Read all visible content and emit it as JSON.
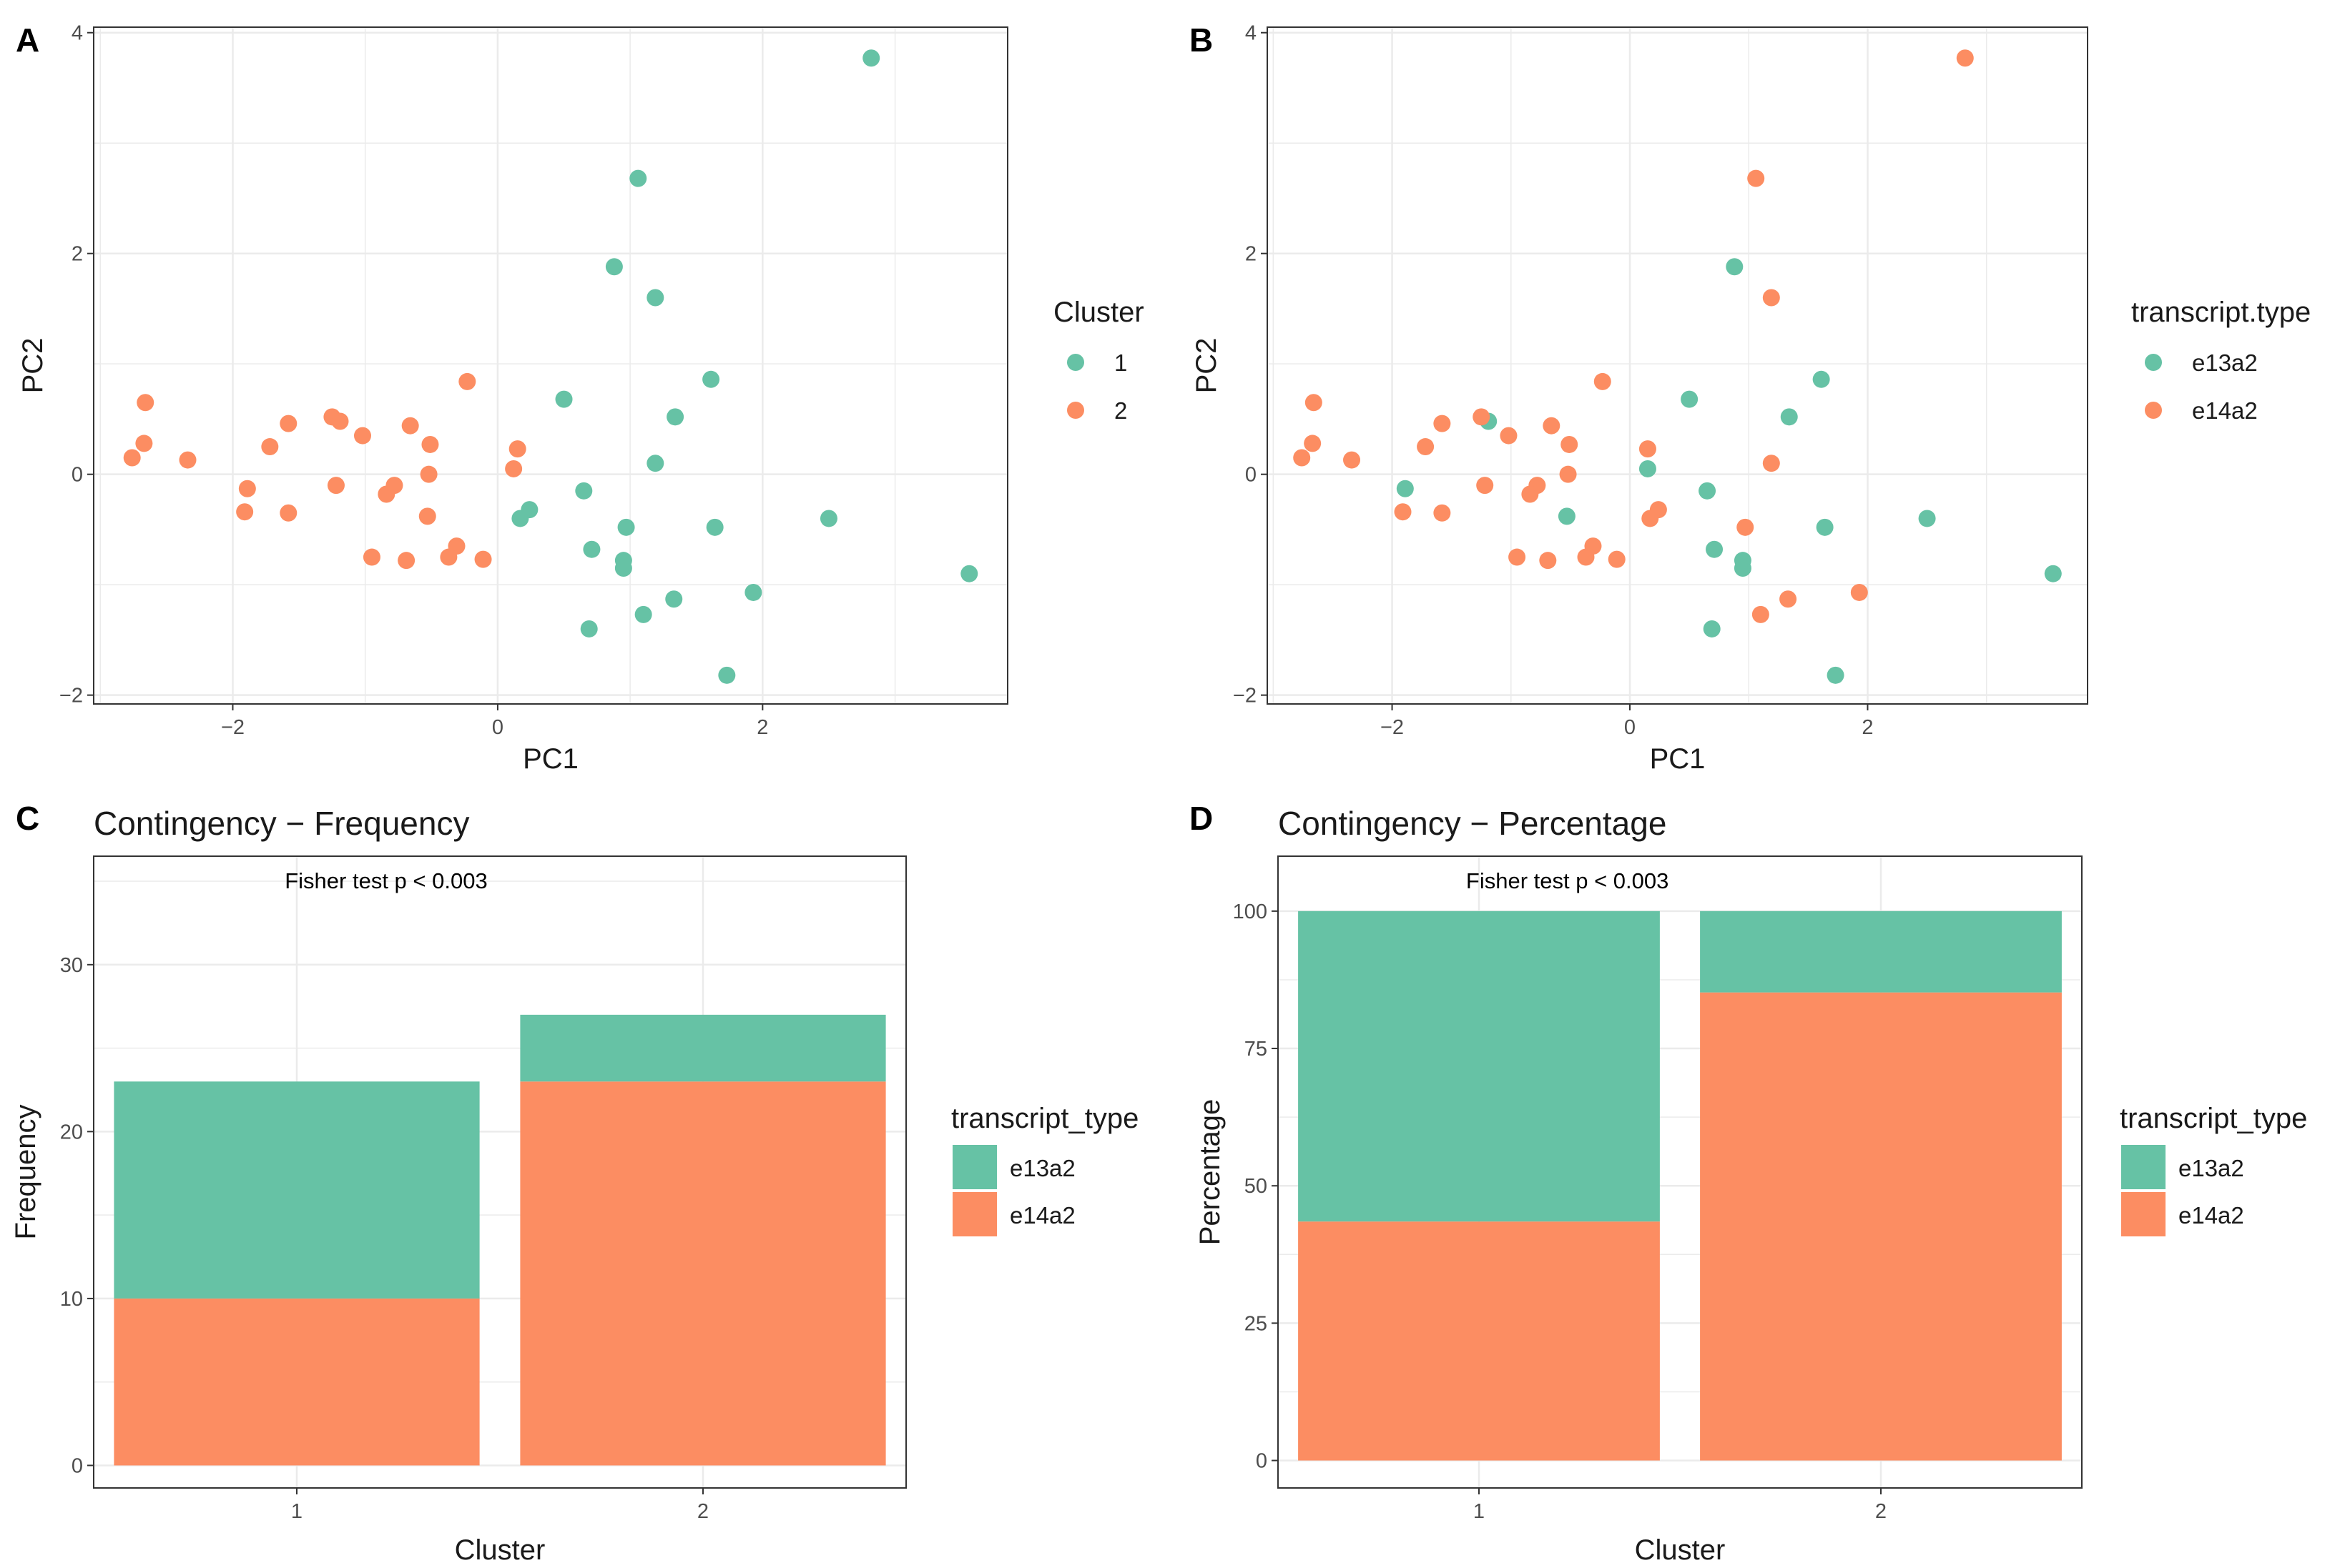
{
  "colors": {
    "teal": "#66c2a5",
    "orange": "#fc8d62",
    "grid": "#ebebeb",
    "border": "#333333"
  },
  "chart_data": [
    {
      "panel": "A",
      "type": "scatter",
      "title": "",
      "xlabel": "PC1",
      "ylabel": "PC2",
      "xlim": [
        -3.05,
        3.85
      ],
      "ylim": [
        -2.08,
        4.05
      ],
      "xticks": [
        -2,
        0,
        2
      ],
      "yticks": [
        -2,
        0,
        2,
        4
      ],
      "xtick_labels": [
        "−2",
        "0",
        "2"
      ],
      "ytick_labels": [
        "−2",
        "0",
        "2",
        "4"
      ],
      "legend": {
        "title": "Cluster",
        "position": "right",
        "entries": [
          "1",
          "2"
        ]
      },
      "series": [
        {
          "name": "1",
          "color": "#66c2a5",
          "points": [
            [
              2.82,
              3.77
            ],
            [
              1.06,
              2.68
            ],
            [
              0.88,
              1.88
            ],
            [
              1.19,
              1.6
            ],
            [
              1.61,
              0.86
            ],
            [
              0.5,
              0.68
            ],
            [
              1.34,
              0.52
            ],
            [
              1.19,
              0.1
            ],
            [
              0.65,
              -0.15
            ],
            [
              0.24,
              -0.32
            ],
            [
              0.17,
              -0.4
            ],
            [
              0.97,
              -0.48
            ],
            [
              1.64,
              -0.48
            ],
            [
              2.5,
              -0.4
            ],
            [
              0.71,
              -0.68
            ],
            [
              0.95,
              -0.78
            ],
            [
              0.95,
              -0.85
            ],
            [
              3.56,
              -0.9
            ],
            [
              1.93,
              -1.07
            ],
            [
              1.33,
              -1.13
            ],
            [
              1.1,
              -1.27
            ],
            [
              0.69,
              -1.4
            ],
            [
              1.73,
              -1.82
            ]
          ]
        },
        {
          "name": "2",
          "color": "#fc8d62",
          "points": [
            [
              -2.66,
              0.65
            ],
            [
              -2.67,
              0.28
            ],
            [
              -2.76,
              0.15
            ],
            [
              -2.34,
              0.13
            ],
            [
              -1.89,
              -0.13
            ],
            [
              -1.91,
              -0.34
            ],
            [
              -1.58,
              -0.35
            ],
            [
              -1.72,
              0.25
            ],
            [
              -1.58,
              0.46
            ],
            [
              -1.25,
              0.52
            ],
            [
              -1.19,
              0.48
            ],
            [
              -1.02,
              0.35
            ],
            [
              -1.22,
              -0.1
            ],
            [
              -0.78,
              -0.1
            ],
            [
              -0.84,
              -0.18
            ],
            [
              -0.95,
              -0.75
            ],
            [
              -0.69,
              -0.78
            ],
            [
              -0.66,
              0.44
            ],
            [
              -0.51,
              0.27
            ],
            [
              -0.52,
              0.0
            ],
            [
              -0.53,
              -0.38
            ],
            [
              -0.31,
              -0.65
            ],
            [
              -0.37,
              -0.75
            ],
            [
              -0.11,
              -0.77
            ],
            [
              -0.23,
              0.84
            ],
            [
              0.15,
              0.23
            ],
            [
              0.12,
              0.05
            ]
          ]
        }
      ]
    },
    {
      "panel": "B",
      "type": "scatter",
      "title": "",
      "xlabel": "PC1",
      "ylabel": "PC2",
      "xlim": [
        -3.05,
        3.85
      ],
      "ylim": [
        -2.08,
        4.05
      ],
      "xticks": [
        -2,
        0,
        2
      ],
      "yticks": [
        -2,
        0,
        2,
        4
      ],
      "xtick_labels": [
        "−2",
        "0",
        "2"
      ],
      "ytick_labels": [
        "−2",
        "0",
        "2",
        "4"
      ],
      "legend": {
        "title": "transcript.type",
        "position": "right",
        "entries": [
          "e13a2",
          "e14a2"
        ]
      },
      "series": [
        {
          "name": "e13a2",
          "color": "#66c2a5",
          "points": [
            [
              0.88,
              1.88
            ],
            [
              1.61,
              0.86
            ],
            [
              0.5,
              0.68
            ],
            [
              1.34,
              0.52
            ],
            [
              -1.19,
              0.48
            ],
            [
              0.15,
              0.05
            ],
            [
              -1.89,
              -0.13
            ],
            [
              0.65,
              -0.15
            ],
            [
              -0.53,
              -0.38
            ],
            [
              1.64,
              -0.48
            ],
            [
              2.5,
              -0.4
            ],
            [
              0.71,
              -0.68
            ],
            [
              0.95,
              -0.78
            ],
            [
              0.95,
              -0.85
            ],
            [
              3.56,
              -0.9
            ],
            [
              0.69,
              -1.4
            ],
            [
              1.73,
              -1.82
            ]
          ]
        },
        {
          "name": "e14a2",
          "color": "#fc8d62",
          "points": [
            [
              2.82,
              3.77
            ],
            [
              1.06,
              2.68
            ],
            [
              1.19,
              1.6
            ],
            [
              -0.23,
              0.84
            ],
            [
              -2.66,
              0.65
            ],
            [
              -1.25,
              0.52
            ],
            [
              -1.58,
              0.46
            ],
            [
              -0.66,
              0.44
            ],
            [
              -1.02,
              0.35
            ],
            [
              -2.67,
              0.28
            ],
            [
              -0.51,
              0.27
            ],
            [
              -1.72,
              0.25
            ],
            [
              0.15,
              0.23
            ],
            [
              -2.76,
              0.15
            ],
            [
              -2.34,
              0.13
            ],
            [
              1.19,
              0.1
            ],
            [
              -0.52,
              0.0
            ],
            [
              -1.22,
              -0.1
            ],
            [
              -0.78,
              -0.1
            ],
            [
              -0.84,
              -0.18
            ],
            [
              0.24,
              -0.32
            ],
            [
              -1.91,
              -0.34
            ],
            [
              -1.58,
              -0.35
            ],
            [
              0.17,
              -0.4
            ],
            [
              0.97,
              -0.48
            ],
            [
              -0.31,
              -0.65
            ],
            [
              -0.95,
              -0.75
            ],
            [
              -0.37,
              -0.75
            ],
            [
              -0.11,
              -0.77
            ],
            [
              -0.69,
              -0.78
            ],
            [
              1.93,
              -1.07
            ],
            [
              1.33,
              -1.13
            ],
            [
              1.1,
              -1.27
            ]
          ]
        }
      ]
    },
    {
      "panel": "C",
      "type": "bar",
      "stacked": true,
      "title": "Contingency − Frequency",
      "annotation": "Fisher test p < 0.003",
      "xlabel": "Cluster",
      "ylabel": "Frequency",
      "categories": [
        "1",
        "2"
      ],
      "ylim": [
        -1.35,
        36.5
      ],
      "yticks": [
        0,
        10,
        20,
        30
      ],
      "ytick_labels": [
        "0",
        "10",
        "20",
        "30"
      ],
      "legend": {
        "title": "transcript_type",
        "position": "right",
        "entries": [
          "e13a2",
          "e14a2"
        ]
      },
      "series": [
        {
          "name": "e14a2",
          "color": "#fc8d62",
          "values": [
            10,
            23
          ]
        },
        {
          "name": "e13a2",
          "color": "#66c2a5",
          "values": [
            13,
            4
          ]
        }
      ]
    },
    {
      "panel": "D",
      "type": "bar",
      "stacked": true,
      "title": "Contingency − Percentage",
      "annotation": "Fisher test p < 0.003",
      "xlabel": "Cluster",
      "ylabel": "Percentage",
      "categories": [
        "1",
        "2"
      ],
      "ylim": [
        -5,
        110
      ],
      "yticks": [
        0,
        25,
        50,
        75,
        100
      ],
      "ytick_labels": [
        "0",
        "25",
        "50",
        "75",
        "100"
      ],
      "legend": {
        "title": "transcript_type",
        "position": "right",
        "entries": [
          "e13a2",
          "e14a2"
        ]
      },
      "series": [
        {
          "name": "e14a2",
          "color": "#fc8d62",
          "values": [
            43.5,
            85.2
          ]
        },
        {
          "name": "e13a2",
          "color": "#66c2a5",
          "values": [
            56.5,
            14.8
          ]
        }
      ]
    }
  ]
}
